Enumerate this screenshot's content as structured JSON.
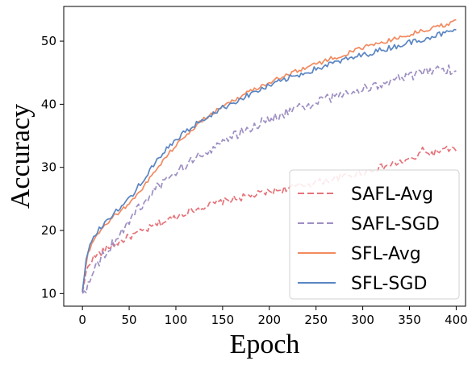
{
  "chart_data": {
    "type": "line",
    "xlabel": "Epoch",
    "ylabel": "Accuracy",
    "xlim": [
      -20,
      410
    ],
    "ylim": [
      8,
      55.5
    ],
    "xticks": [
      0,
      50,
      100,
      150,
      200,
      250,
      300,
      350,
      400
    ],
    "yticks": [
      10,
      20,
      30,
      40,
      50
    ],
    "grid": false,
    "legend": {
      "position": "bottom-right"
    },
    "series": [
      {
        "name": "SAFL-Avg",
        "color": "#e6737a",
        "dash": "dashed",
        "x": [
          0,
          5,
          10,
          20,
          30,
          40,
          50,
          60,
          70,
          80,
          90,
          100,
          110,
          120,
          130,
          140,
          150,
          160,
          170,
          180,
          190,
          200,
          210,
          220,
          230,
          240,
          250,
          260,
          270,
          280,
          290,
          300,
          310,
          320,
          330,
          340,
          350,
          360,
          365,
          370,
          380,
          390,
          395,
          400
        ],
        "y": [
          10.2,
          14.0,
          15.5,
          16.5,
          17.5,
          18.2,
          19.0,
          19.6,
          20.2,
          21.0,
          21.5,
          22.2,
          22.8,
          23.3,
          23.8,
          24.2,
          24.6,
          24.9,
          25.2,
          25.5,
          25.8,
          26.1,
          26.4,
          26.7,
          27.0,
          27.3,
          27.6,
          27.9,
          28.2,
          28.5,
          28.9,
          29.2,
          29.6,
          30.0,
          30.4,
          30.8,
          31.2,
          31.7,
          33.3,
          32.0,
          32.5,
          32.8,
          33.0,
          32.6
        ]
      },
      {
        "name": "SAFL-SGD",
        "color": "#9e8fc3",
        "dash": "dashed",
        "x": [
          0,
          5,
          10,
          20,
          30,
          40,
          50,
          60,
          70,
          80,
          90,
          100,
          110,
          120,
          130,
          140,
          150,
          160,
          170,
          180,
          190,
          200,
          210,
          220,
          230,
          240,
          250,
          260,
          270,
          280,
          290,
          300,
          310,
          320,
          330,
          340,
          350,
          360,
          370,
          380,
          390,
          400
        ],
        "y": [
          10.0,
          11.0,
          13.5,
          15.5,
          17.5,
          19.5,
          21.5,
          23.5,
          25.0,
          26.8,
          28.0,
          29.2,
          30.3,
          31.3,
          32.3,
          33.2,
          34.0,
          34.8,
          35.6,
          36.3,
          37.0,
          37.6,
          38.2,
          38.8,
          39.3,
          39.8,
          40.3,
          40.8,
          41.2,
          41.6,
          42.0,
          42.4,
          42.8,
          43.2,
          43.6,
          44.0,
          44.4,
          44.8,
          45.1,
          45.4,
          45.6,
          45.3
        ]
      },
      {
        "name": "SFL-Avg",
        "color": "#f28a5f",
        "dash": "solid",
        "x": [
          0,
          5,
          10,
          20,
          30,
          40,
          50,
          60,
          70,
          80,
          90,
          100,
          110,
          120,
          130,
          140,
          150,
          160,
          170,
          180,
          190,
          200,
          210,
          220,
          230,
          240,
          250,
          260,
          270,
          280,
          290,
          300,
          310,
          320,
          330,
          340,
          350,
          360,
          370,
          380,
          390,
          400
        ],
        "y": [
          10.5,
          15.8,
          17.8,
          20.0,
          21.8,
          23.0,
          24.3,
          26.0,
          27.8,
          29.8,
          31.8,
          33.5,
          35.0,
          36.4,
          37.6,
          38.7,
          39.6,
          40.5,
          41.3,
          42.1,
          42.8,
          43.5,
          44.1,
          44.7,
          45.3,
          45.9,
          46.4,
          46.9,
          47.4,
          47.9,
          48.4,
          48.9,
          49.4,
          49.8,
          50.2,
          50.6,
          51.0,
          51.5,
          51.9,
          52.3,
          52.7,
          53.4
        ]
      },
      {
        "name": "SFL-SGD",
        "color": "#5a85c2",
        "dash": "solid",
        "x": [
          0,
          5,
          10,
          20,
          30,
          40,
          50,
          60,
          70,
          80,
          90,
          100,
          110,
          120,
          130,
          140,
          150,
          160,
          170,
          180,
          190,
          200,
          210,
          220,
          230,
          240,
          250,
          260,
          270,
          280,
          290,
          300,
          310,
          320,
          330,
          340,
          350,
          360,
          370,
          380,
          390,
          400
        ],
        "y": [
          10.3,
          16.5,
          18.5,
          20.5,
          22.3,
          23.6,
          25.0,
          27.0,
          29.0,
          31.0,
          32.8,
          34.3,
          35.6,
          36.7,
          37.7,
          38.6,
          39.4,
          40.2,
          40.9,
          41.6,
          42.3,
          42.9,
          43.5,
          44.1,
          44.6,
          45.1,
          45.6,
          46.1,
          46.6,
          47.0,
          47.4,
          47.8,
          48.2,
          48.6,
          49.0,
          49.4,
          49.8,
          50.2,
          50.6,
          51.0,
          51.3,
          51.8
        ]
      }
    ]
  }
}
